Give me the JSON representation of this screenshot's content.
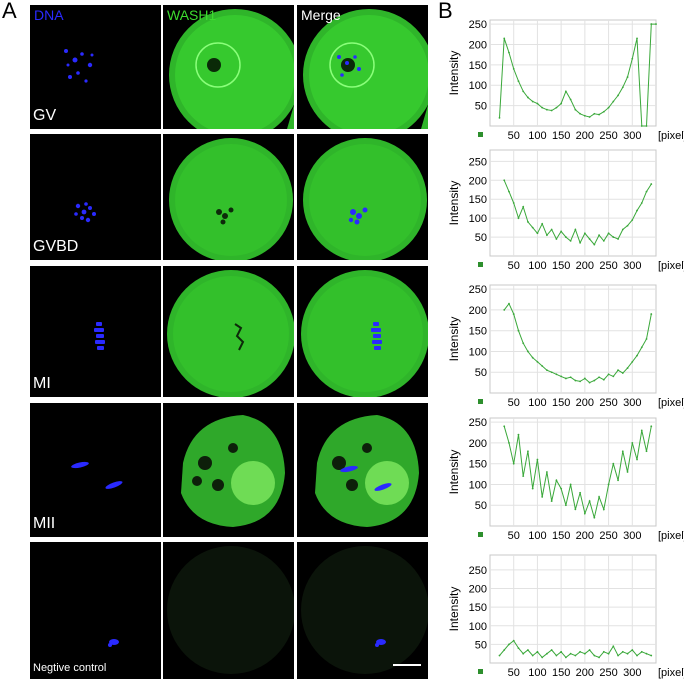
{
  "panel_labels": {
    "a": "A",
    "b": "B"
  },
  "columns": [
    "DNA",
    "WASH1",
    "Merge"
  ],
  "column_colors": {
    "dna": "#2a2aff",
    "wash1": "#3ddc2f",
    "merge": "#ffffff"
  },
  "rows": [
    {
      "stage": "GV"
    },
    {
      "stage": "GVBD"
    },
    {
      "stage": "MI"
    },
    {
      "stage": "MII"
    },
    {
      "stage": "Negtive control"
    }
  ],
  "chart_data": [
    {
      "type": "line",
      "ylabel": "Intensity",
      "x_unit": "[pixel]",
      "xlim": [
        0,
        350
      ],
      "ylim": [
        0,
        260
      ],
      "xticks": [
        50,
        100,
        150,
        200,
        250,
        300
      ],
      "yticks": [
        50,
        100,
        150,
        200,
        250
      ],
      "grid": true,
      "series": [
        {
          "color": "#3aa83a",
          "x": [
            20,
            30,
            40,
            50,
            60,
            70,
            80,
            90,
            100,
            110,
            120,
            130,
            140,
            150,
            160,
            170,
            180,
            190,
            200,
            210,
            220,
            230,
            240,
            250,
            260,
            270,
            280,
            290,
            300,
            310,
            320,
            330,
            340,
            350
          ],
          "y": [
            20,
            215,
            180,
            140,
            110,
            85,
            70,
            60,
            55,
            45,
            40,
            38,
            45,
            55,
            85,
            65,
            40,
            30,
            25,
            22,
            30,
            28,
            35,
            45,
            60,
            75,
            95,
            120,
            165,
            215,
            0,
            0,
            250,
            250
          ]
        }
      ]
    },
    {
      "type": "line",
      "ylabel": "Intensity",
      "x_unit": "[pixel]",
      "xlim": [
        0,
        350
      ],
      "ylim": [
        0,
        280
      ],
      "xticks": [
        50,
        100,
        150,
        200,
        250,
        300
      ],
      "yticks": [
        50,
        100,
        150,
        200,
        250
      ],
      "grid": true,
      "series": [
        {
          "color": "#3aa83a",
          "x": [
            30,
            40,
            50,
            60,
            70,
            80,
            90,
            100,
            110,
            120,
            130,
            140,
            150,
            160,
            170,
            180,
            190,
            200,
            210,
            220,
            230,
            240,
            250,
            260,
            270,
            280,
            290,
            300,
            310,
            320,
            330,
            340
          ],
          "y": [
            200,
            170,
            140,
            100,
            130,
            90,
            75,
            60,
            85,
            55,
            70,
            45,
            65,
            50,
            40,
            70,
            35,
            60,
            45,
            30,
            55,
            40,
            60,
            50,
            45,
            70,
            80,
            95,
            120,
            140,
            170,
            190
          ]
        }
      ]
    },
    {
      "type": "line",
      "ylabel": "Intensity",
      "x_unit": "[pixel]",
      "xlim": [
        0,
        350
      ],
      "ylim": [
        0,
        260
      ],
      "xticks": [
        50,
        100,
        150,
        200,
        250,
        300
      ],
      "yticks": [
        50,
        100,
        150,
        200,
        250
      ],
      "grid": true,
      "series": [
        {
          "color": "#3aa83a",
          "x": [
            30,
            40,
            50,
            60,
            70,
            80,
            90,
            100,
            110,
            120,
            130,
            140,
            150,
            160,
            170,
            180,
            190,
            200,
            210,
            220,
            230,
            240,
            250,
            260,
            270,
            280,
            290,
            300,
            310,
            320,
            330,
            340
          ],
          "y": [
            200,
            215,
            190,
            150,
            120,
            100,
            85,
            75,
            65,
            55,
            50,
            45,
            40,
            35,
            38,
            30,
            28,
            35,
            25,
            30,
            38,
            32,
            45,
            40,
            55,
            48,
            60,
            75,
            90,
            110,
            130,
            190
          ]
        }
      ]
    },
    {
      "type": "line",
      "ylabel": "Intensity",
      "x_unit": "[pixel]",
      "xlim": [
        0,
        350
      ],
      "ylim": [
        0,
        260
      ],
      "xticks": [
        50,
        100,
        150,
        200,
        250,
        300
      ],
      "yticks": [
        50,
        100,
        150,
        200,
        250
      ],
      "grid": true,
      "series": [
        {
          "color": "#3aa83a",
          "x": [
            30,
            40,
            50,
            60,
            70,
            80,
            90,
            100,
            110,
            120,
            130,
            140,
            150,
            160,
            170,
            180,
            190,
            200,
            210,
            220,
            230,
            240,
            250,
            260,
            270,
            280,
            290,
            300,
            310,
            320,
            330,
            340
          ],
          "y": [
            240,
            200,
            150,
            220,
            120,
            180,
            90,
            160,
            70,
            130,
            60,
            110,
            90,
            50,
            100,
            40,
            80,
            30,
            60,
            20,
            70,
            40,
            100,
            150,
            110,
            180,
            130,
            200,
            160,
            230,
            180,
            240
          ]
        }
      ]
    },
    {
      "type": "line",
      "ylabel": "Intensity",
      "x_unit": "[pixel]",
      "xlim": [
        0,
        350
      ],
      "ylim": [
        0,
        290
      ],
      "xticks": [
        50,
        100,
        150,
        200,
        250,
        300
      ],
      "yticks": [
        50,
        100,
        150,
        200,
        250
      ],
      "grid": true,
      "series": [
        {
          "color": "#3aa83a",
          "x": [
            20,
            30,
            40,
            50,
            60,
            70,
            80,
            90,
            100,
            110,
            120,
            130,
            140,
            150,
            160,
            170,
            180,
            190,
            200,
            210,
            220,
            230,
            240,
            250,
            260,
            270,
            280,
            290,
            300,
            310,
            320,
            330,
            340
          ],
          "y": [
            20,
            35,
            50,
            60,
            40,
            25,
            35,
            20,
            30,
            15,
            25,
            35,
            20,
            30,
            15,
            25,
            20,
            30,
            25,
            35,
            20,
            15,
            30,
            25,
            45,
            20,
            30,
            25,
            35,
            20,
            30,
            25,
            20
          ]
        }
      ]
    }
  ]
}
